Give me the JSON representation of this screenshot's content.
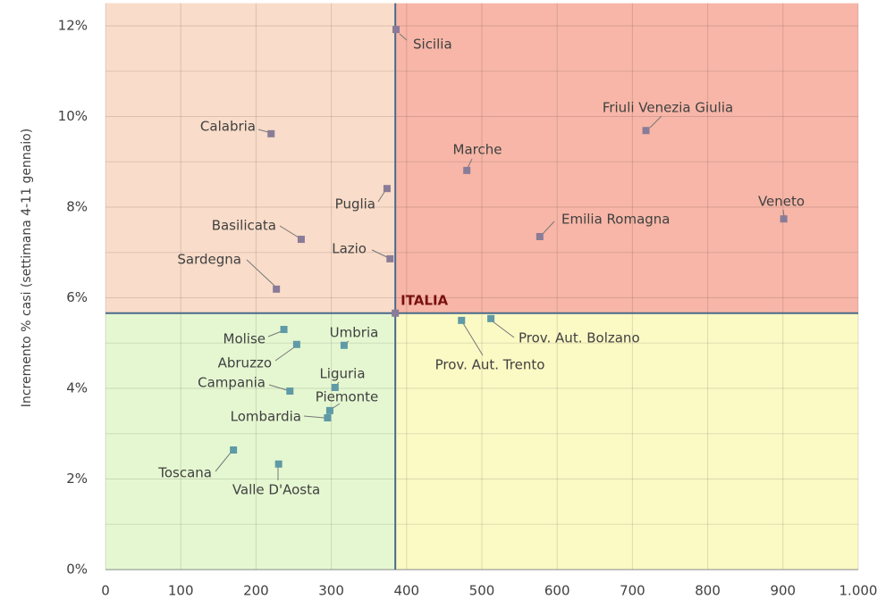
{
  "chart_data": {
    "type": "scatter",
    "y_label": "Incremento % casi (settimana 4-11 gennaio)",
    "xlim": [
      0,
      1000
    ],
    "ylim": [
      0,
      12.5
    ],
    "xticks": [
      0,
      100,
      200,
      300,
      400,
      500,
      600,
      700,
      800,
      900,
      {
        "value": 1000,
        "label": "1.000"
      }
    ],
    "yticks": [
      {
        "value": 0,
        "label": "0%"
      },
      {
        "value": 2,
        "label": "2%"
      },
      {
        "value": 4,
        "label": "4%"
      },
      {
        "value": 6,
        "label": "6%"
      },
      {
        "value": 8,
        "label": "8%"
      },
      {
        "value": 10,
        "label": "10%"
      },
      {
        "value": 12,
        "label": "12%"
      }
    ],
    "minor_yticks": [
      1,
      3,
      5,
      7,
      9,
      11
    ],
    "grid": true,
    "reference": {
      "label": "ITALIA",
      "x": 385,
      "y": 5.66,
      "color": "#4a6a8a",
      "label_color": "#7a1010"
    },
    "quadrant_colors": {
      "top_left": "#f9dcc9",
      "top_right": "#f7b6a7",
      "bottom_left": "#e5f7d1",
      "bottom_right": "#fbf9c4"
    },
    "marker_colors": {
      "above": "#8a7c98",
      "below": "#5f9aa6"
    },
    "points": [
      {
        "label": "Sicilia",
        "x": 386,
        "y": 11.92
      },
      {
        "label": "Calabria",
        "x": 220,
        "y": 9.62
      },
      {
        "label": "Friuli Venezia Giulia",
        "x": 718,
        "y": 9.69
      },
      {
        "label": "Marche",
        "x": 480,
        "y": 8.81
      },
      {
        "label": "Puglia",
        "x": 374,
        "y": 8.41
      },
      {
        "label": "Veneto",
        "x": 901,
        "y": 7.74
      },
      {
        "label": "Emilia Romagna",
        "x": 577,
        "y": 7.35
      },
      {
        "label": "Basilicata",
        "x": 260,
        "y": 7.29
      },
      {
        "label": "Lazio",
        "x": 378,
        "y": 6.86
      },
      {
        "label": "Sardegna",
        "x": 227,
        "y": 6.19
      },
      {
        "label": "Prov. Aut. Trento",
        "x": 473,
        "y": 5.5
      },
      {
        "label": "Prov. Aut. Bolzano",
        "x": 512,
        "y": 5.54
      },
      {
        "label": "Molise",
        "x": 237,
        "y": 5.3
      },
      {
        "label": "Abruzzo",
        "x": 254,
        "y": 4.97
      },
      {
        "label": "Umbria",
        "x": 317,
        "y": 4.95
      },
      {
        "label": "Liguria",
        "x": 305,
        "y": 4.02
      },
      {
        "label": "Campania",
        "x": 245,
        "y": 3.94
      },
      {
        "label": "Piemonte",
        "x": 298,
        "y": 3.51
      },
      {
        "label": "Lombardia",
        "x": 295,
        "y": 3.35
      },
      {
        "label": "Toscana",
        "x": 170,
        "y": 2.64
      },
      {
        "label": "Valle D'Aosta",
        "x": 230,
        "y": 2.33
      }
    ]
  }
}
